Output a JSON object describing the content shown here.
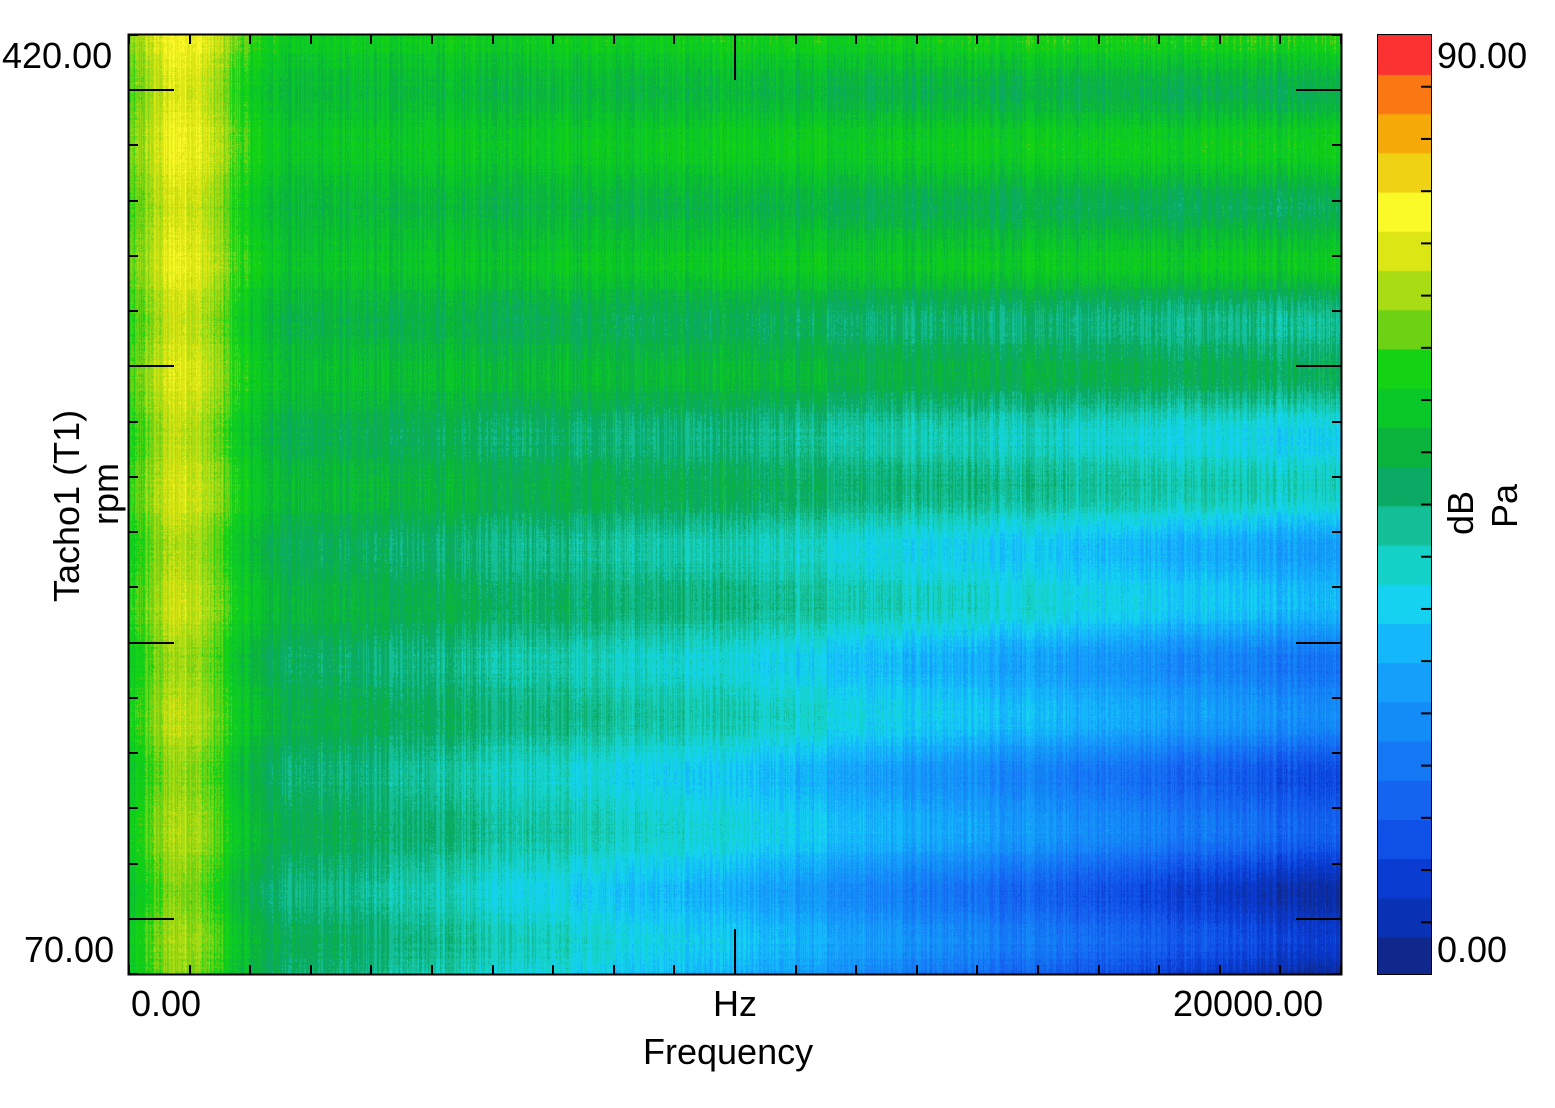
{
  "chart_data": {
    "type": "heatmap",
    "title": "",
    "xlabel": "Frequency",
    "x_unit": "Hz",
    "ylabel": "Tacho1 (T1)",
    "y_unit": "rpm",
    "xlim": [
      0.0,
      20000.0
    ],
    "ylim": [
      70.0,
      420.0
    ],
    "x_tick_labels": [
      "0.00",
      "20000.00"
    ],
    "y_tick_labels": [
      "420.00",
      "70.00"
    ],
    "colorbar": {
      "label": "dB",
      "unit": "Pa",
      "range": [
        0.0,
        90.0
      ],
      "tick_labels": [
        "90.00",
        "0.00"
      ],
      "levels": 22,
      "colors": [
        "#10288c",
        "#0a32b4",
        "#0a3cd2",
        "#0f50e6",
        "#1464f0",
        "#1478f5",
        "#148cf8",
        "#14a0fa",
        "#14b8fa",
        "#14d2f0",
        "#14d2c8",
        "#14be96",
        "#0aaa64",
        "#0ab43c",
        "#0ac828",
        "#14d214",
        "#6ed214",
        "#aadc14",
        "#dce614",
        "#fafa28",
        "#f0d214",
        "#f5aa0a",
        "#fa7814",
        "#fa3232"
      ]
    },
    "grid": false,
    "regions": [
      {
        "x": [
          0,
          2000
        ],
        "y": [
          70,
          420
        ],
        "level_db": 68
      },
      {
        "x": [
          2000,
          9000
        ],
        "y": [
          250,
          420
        ],
        "level_db": 58
      },
      {
        "x": [
          9000,
          20000
        ],
        "y": [
          250,
          420
        ],
        "level_db": 52
      },
      {
        "x": [
          9000,
          20000
        ],
        "y": [
          70,
          200
        ],
        "level_db": 22
      },
      {
        "x": [
          2000,
          9000
        ],
        "y": [
          70,
          200
        ],
        "level_db": 40
      }
    ]
  }
}
